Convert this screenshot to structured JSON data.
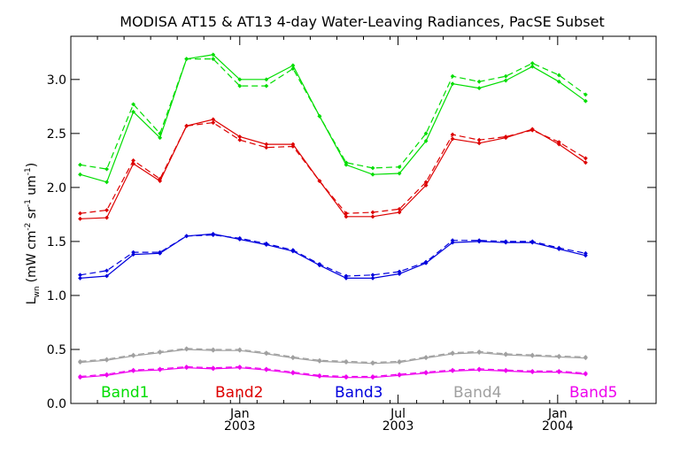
{
  "chart_data": {
    "type": "line",
    "title": "MODISA AT15 & AT13 4-day Water-Leaving Radiances, PacSE Subset",
    "ylabel": {
      "main": "L",
      "sub": "wn",
      "units": "(mW cm",
      "exp1": "-2",
      "sr": " sr",
      "exp2": "-1",
      "um": " um",
      "exp3": "-1",
      "close": ")"
    },
    "ylim": [
      0.0,
      3.4
    ],
    "y_ticks": [
      {
        "value": 0.0,
        "label": "0.0"
      },
      {
        "value": 0.5,
        "label": "0.5"
      },
      {
        "value": 1.0,
        "label": "1.0"
      },
      {
        "value": 1.5,
        "label": "1.5"
      },
      {
        "value": 2.0,
        "label": "2.0"
      },
      {
        "value": 2.5,
        "label": "2.5"
      },
      {
        "value": 3.0,
        "label": "3.0"
      }
    ],
    "x_ticks": [
      {
        "index": 6.35,
        "month": "Jan",
        "year": "2003"
      },
      {
        "index": 12.3,
        "month": "Jul",
        "year": "2003"
      },
      {
        "index": 18.3,
        "month": "Jan",
        "year": "2004"
      }
    ],
    "xlim": [
      0,
      22
    ],
    "grid": false,
    "legend_placement": "bottom",
    "series": [
      {
        "name": "Band1",
        "color": "#00dd00",
        "style": "solid",
        "values": [
          2.12,
          2.05,
          2.7,
          2.46,
          3.19,
          3.23,
          3.0,
          3.0,
          3.13,
          2.66,
          2.21,
          2.12,
          2.13,
          2.43,
          2.96,
          2.92,
          2.99,
          3.12,
          2.98,
          2.8
        ]
      },
      {
        "name": "Band1",
        "color": "#00dd00",
        "style": "dashed",
        "values": [
          2.21,
          2.17,
          2.77,
          2.5,
          3.19,
          3.19,
          2.94,
          2.94,
          3.1,
          2.66,
          2.23,
          2.18,
          2.19,
          2.5,
          3.03,
          2.98,
          3.03,
          3.15,
          3.04,
          2.86
        ]
      },
      {
        "name": "Band2",
        "color": "#dd0000",
        "style": "solid",
        "values": [
          1.71,
          1.72,
          2.22,
          2.06,
          2.57,
          2.63,
          2.47,
          2.4,
          2.4,
          2.06,
          1.73,
          1.73,
          1.77,
          2.02,
          2.45,
          2.41,
          2.46,
          2.54,
          2.4,
          2.23
        ]
      },
      {
        "name": "Band2",
        "color": "#dd0000",
        "style": "dashed",
        "values": [
          1.76,
          1.79,
          2.25,
          2.08,
          2.57,
          2.6,
          2.44,
          2.37,
          2.38,
          2.06,
          1.76,
          1.77,
          1.8,
          2.05,
          2.49,
          2.44,
          2.47,
          2.53,
          2.42,
          2.27
        ]
      },
      {
        "name": "Band3",
        "color": "#0000dd",
        "style": "solid",
        "values": [
          1.16,
          1.18,
          1.38,
          1.39,
          1.55,
          1.57,
          1.52,
          1.47,
          1.41,
          1.28,
          1.16,
          1.16,
          1.2,
          1.3,
          1.49,
          1.5,
          1.49,
          1.49,
          1.43,
          1.37
        ]
      },
      {
        "name": "Band3",
        "color": "#0000dd",
        "style": "dashed",
        "values": [
          1.19,
          1.23,
          1.4,
          1.4,
          1.55,
          1.56,
          1.53,
          1.48,
          1.42,
          1.29,
          1.18,
          1.19,
          1.22,
          1.31,
          1.51,
          1.51,
          1.5,
          1.5,
          1.44,
          1.39
        ]
      },
      {
        "name": "Band4",
        "color": "#a0a0a0",
        "style": "solid",
        "values": [
          0.38,
          0.4,
          0.44,
          0.47,
          0.5,
          0.49,
          0.49,
          0.46,
          0.42,
          0.39,
          0.38,
          0.37,
          0.38,
          0.42,
          0.46,
          0.47,
          0.45,
          0.44,
          0.43,
          0.42
        ]
      },
      {
        "name": "Band4",
        "color": "#a0a0a0",
        "style": "dashed",
        "values": [
          0.39,
          0.41,
          0.45,
          0.48,
          0.51,
          0.5,
          0.5,
          0.47,
          0.43,
          0.4,
          0.39,
          0.38,
          0.39,
          0.43,
          0.47,
          0.48,
          0.46,
          0.45,
          0.44,
          0.43
        ]
      },
      {
        "name": "Band5",
        "color": "#ee00ee",
        "style": "solid",
        "values": [
          0.24,
          0.26,
          0.3,
          0.31,
          0.33,
          0.32,
          0.33,
          0.31,
          0.28,
          0.25,
          0.24,
          0.24,
          0.26,
          0.28,
          0.3,
          0.31,
          0.3,
          0.29,
          0.29,
          0.27
        ]
      },
      {
        "name": "Band5",
        "color": "#ee00ee",
        "style": "dashed",
        "values": [
          0.25,
          0.27,
          0.31,
          0.32,
          0.34,
          0.33,
          0.34,
          0.32,
          0.29,
          0.26,
          0.25,
          0.25,
          0.27,
          0.29,
          0.31,
          0.32,
          0.31,
          0.3,
          0.3,
          0.28
        ]
      }
    ],
    "legend": [
      {
        "label": "Band1",
        "color": "#00dd00"
      },
      {
        "label": "Band2",
        "color": "#dd0000"
      },
      {
        "label": "Band3",
        "color": "#0000dd"
      },
      {
        "label": "Band4",
        "color": "#a0a0a0"
      },
      {
        "label": "Band5",
        "color": "#ee00ee"
      }
    ]
  }
}
